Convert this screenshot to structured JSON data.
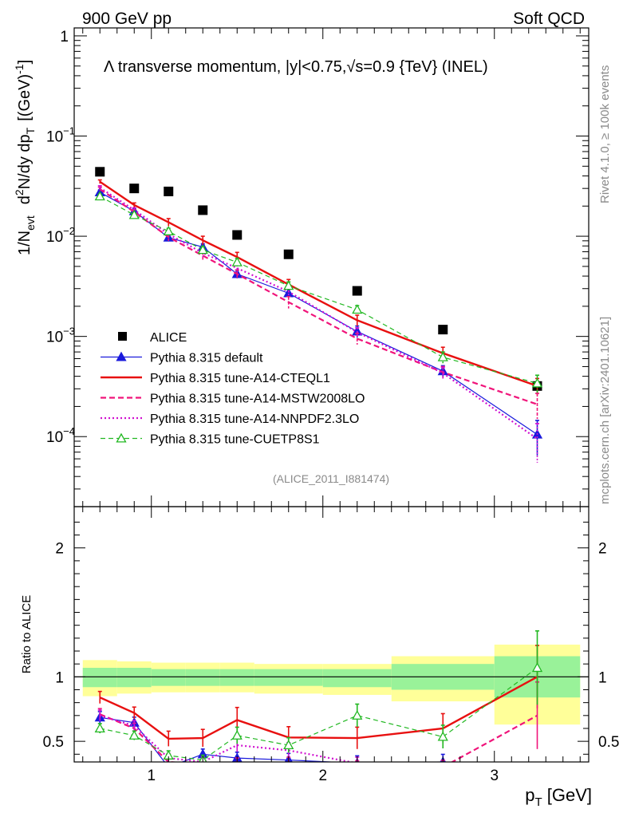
{
  "header": {
    "left": "900 GeV pp",
    "right": "Soft QCD"
  },
  "side_text": {
    "rivet": "Rivet 4.1.0, ≥ 100k events",
    "mcplots": "mcplots.cern.ch [arXiv:2401.10621]"
  },
  "chart_data": [
    {
      "type": "scatter",
      "panel": "main",
      "title": "Λ transverse momentum, |y|<0.75,√s=0.9 {TeV} (INEL)",
      "analysis": "(ALICE_2011_I881474)",
      "ylabel": "1/N_evt d²N/dy dp_T [(GeV)⁻¹]",
      "ylabel_parts": {
        "a": "1/N",
        "a_sub": "evt",
        "b": "d",
        "b_sup": "2",
        "c": "N/dy dp",
        "c_sub": "T",
        "d": "[(GeV)",
        "d_sup": "-1",
        "e": "]"
      },
      "yscale": "log",
      "ylim": [
        2e-05,
        1.2
      ],
      "xlim": [
        0.55,
        3.55
      ],
      "y_ticklabels": [
        {
          "base": "1",
          "exp": "",
          "value": 1
        },
        {
          "base": "10",
          "exp": "−1",
          "value": 0.1
        },
        {
          "base": "10",
          "exp": "−2",
          "value": 0.01
        },
        {
          "base": "10",
          "exp": "−3",
          "value": 0.001
        },
        {
          "base": "10",
          "exp": "−4",
          "value": 0.0001
        }
      ],
      "legend_position": "bottom-left",
      "series": [
        {
          "name": "ALICE",
          "color": "#000000",
          "style": "data",
          "x": [
            0.7,
            0.9,
            1.1,
            1.3,
            1.5,
            1.8,
            2.2,
            2.7,
            3.25
          ],
          "y": [
            0.044,
            0.03,
            0.028,
            0.0182,
            0.0103,
            0.0066,
            0.00285,
            0.00117,
            0.00032
          ]
        },
        {
          "name": "Pythia 8.315 default",
          "color": "#1a1adc",
          "style": "solid-thin-triangle",
          "x": [
            0.7,
            0.9,
            1.1,
            1.3,
            1.5,
            1.8,
            2.2,
            2.7,
            3.25
          ],
          "y": [
            0.0275,
            0.0178,
            0.0097,
            0.0078,
            0.0042,
            0.0027,
            0.00112,
            0.00045,
            0.000105
          ],
          "err": [
            0.0014,
            0.0009,
            0.0007,
            0.0006,
            0.0004,
            0.0003,
            0.00015,
            6e-05,
            4e-05
          ]
        },
        {
          "name": "Pythia 8.315 tune-A14-CTEQL1",
          "color": "#e81010",
          "style": "solid-thick",
          "x": [
            0.7,
            0.9,
            1.1,
            1.3,
            1.5,
            1.8,
            2.2,
            2.7,
            3.25
          ],
          "y": [
            0.035,
            0.0205,
            0.0138,
            0.0091,
            0.0062,
            0.0033,
            0.00145,
            0.00068,
            0.00032
          ],
          "err": [
            0.0015,
            0.001,
            0.0012,
            0.0009,
            0.0007,
            0.0004,
            0.00018,
            0.0001,
            6e-05
          ]
        },
        {
          "name": "Pythia 8.315 tune-A14-MSTW2008LO",
          "color": "#f0147a",
          "style": "dashed",
          "x": [
            0.7,
            0.9,
            1.1,
            1.3,
            1.5,
            1.8,
            2.2,
            2.7,
            3.25
          ],
          "y": [
            0.0295,
            0.0175,
            0.0098,
            0.0064,
            0.0042,
            0.0022,
            0.00095,
            0.00044,
            0.00021
          ],
          "err": [
            0.0014,
            0.0009,
            0.0008,
            0.0006,
            0.0004,
            0.0003,
            0.00012,
            6e-05,
            6e-05
          ]
        },
        {
          "name": "Pythia 8.315 tune-A14-NNPDF2.3LO",
          "color": "#d010d0",
          "style": "dotted",
          "x": [
            0.7,
            0.9,
            1.1,
            1.3,
            1.5,
            1.8,
            2.2,
            2.7,
            3.25
          ],
          "y": [
            0.0305,
            0.0183,
            0.0105,
            0.0068,
            0.0048,
            0.0028,
            0.0011,
            0.00043,
            9.5e-05
          ],
          "err": [
            0.0014,
            0.0009,
            0.0008,
            0.0006,
            0.0004,
            0.0003,
            0.00012,
            6e-05,
            4e-05
          ]
        },
        {
          "name": "Pythia 8.315 tune-CUETP8S1",
          "color": "#22b822",
          "style": "dashed-open-triangle",
          "x": [
            0.7,
            0.9,
            1.1,
            1.3,
            1.5,
            1.8,
            2.2,
            2.7,
            3.25
          ],
          "y": [
            0.025,
            0.0163,
            0.0112,
            0.0073,
            0.0055,
            0.0032,
            0.00185,
            0.00062,
            0.00034
          ],
          "err": [
            0.0012,
            0.0008,
            0.0008,
            0.0006,
            0.0005,
            0.0003,
            0.00018,
            8e-05,
            7e-05
          ]
        }
      ]
    },
    {
      "type": "line",
      "panel": "ratio",
      "ylabel": "Ratio to ALICE",
      "xlabel": "p_T [GeV]",
      "xlabel_parts": {
        "a": "p",
        "sub": "T",
        "b": " [GeV]"
      },
      "ylim": [
        0.34,
        2.32
      ],
      "xlim": [
        0.55,
        3.55
      ],
      "x_ticks": [
        1,
        2,
        3
      ],
      "y_ticks": [
        0.5,
        1,
        2
      ],
      "bands": {
        "edges": [
          0.6,
          0.8,
          1.0,
          1.2,
          1.4,
          1.6,
          2.0,
          2.4,
          3.0,
          3.5
        ],
        "stat_sys_hi": [
          1.13,
          1.12,
          1.11,
          1.11,
          1.11,
          1.1,
          1.1,
          1.16,
          1.25
        ],
        "stat_sys_lo": [
          0.85,
          0.87,
          0.88,
          0.88,
          0.88,
          0.87,
          0.86,
          0.81,
          0.63
        ],
        "stat_hi": [
          1.07,
          1.07,
          1.06,
          1.06,
          1.06,
          1.06,
          1.06,
          1.1,
          1.16
        ],
        "stat_lo": [
          0.92,
          0.92,
          0.93,
          0.93,
          0.93,
          0.93,
          0.92,
          0.9,
          0.84
        ]
      },
      "series": [
        {
          "name": "Pythia 8.315 default",
          "x": [
            0.7,
            0.9,
            1.1,
            1.3,
            1.5,
            1.8,
            2.2,
            2.7
          ],
          "y": [
            0.685,
            0.645,
            0.3,
            0.4,
            0.37,
            0.355,
            0.33,
            0.34
          ]
        },
        {
          "name": "Pythia 8.315 tune-A14-CTEQL1",
          "x": [
            0.7,
            0.9,
            1.1,
            1.3,
            1.5,
            1.8,
            2.2,
            2.7,
            3.25
          ],
          "y": [
            0.84,
            0.72,
            0.52,
            0.525,
            0.665,
            0.53,
            0.525,
            0.6,
            1.0
          ]
        },
        {
          "name": "Pythia 8.315 tune-A14-MSTW2008LO",
          "x": [
            0.7,
            0.9,
            1.1,
            1.3,
            1.5,
            1.8,
            2.2,
            2.7,
            3.25
          ],
          "y": [
            0.71,
            0.6,
            0.34,
            0.32,
            0.33,
            0.32,
            0.3,
            0.3,
            0.7
          ]
        },
        {
          "name": "Pythia 8.315 tune-A14-NNPDF2.3LO",
          "x": [
            0.7,
            0.9,
            1.1,
            1.3,
            1.5,
            1.8,
            2.2
          ],
          "y": [
            0.7,
            0.62,
            0.37,
            0.34,
            0.47,
            0.43,
            0.33
          ]
        },
        {
          "name": "Pythia 8.315 tune-CUETP8S1",
          "x": [
            0.7,
            0.9,
            1.1,
            1.3,
            1.5,
            1.8,
            2.2,
            2.7,
            3.25
          ],
          "y": [
            0.6,
            0.545,
            0.39,
            0.355,
            0.545,
            0.47,
            0.7,
            0.535,
            1.07
          ]
        }
      ]
    }
  ]
}
